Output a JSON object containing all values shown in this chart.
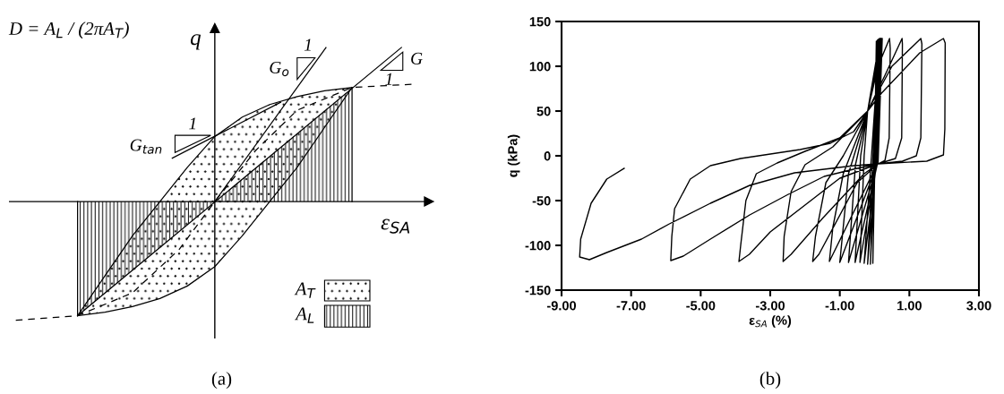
{
  "chart_data": [
    {
      "type": "other",
      "xlabel": "ε$_{SA}$",
      "ylabel": "q",
      "annotations": [
        "D = A$_{L}$ / (2πA$_{T}$)",
        "G$_{o}$",
        "1",
        "G",
        "1",
        "G$_{tan}$",
        "1",
        "A$_{T}$",
        "A$_{L}$",
        "(a)"
      ]
    },
    {
      "type": "line",
      "xlabel": "ε$_{SA}$ (%)",
      "ylabel": "q (kPa)",
      "grid": false,
      "xlim": [
        -9,
        3
      ],
      "ylim": [
        -150,
        150
      ],
      "xticks": [
        {
          "value": -9,
          "label": "-9.00"
        },
        {
          "value": -7,
          "label": "-7.00"
        },
        {
          "value": -5,
          "label": "-5.00"
        },
        {
          "value": -3,
          "label": "-3.00"
        },
        {
          "value": -1,
          "label": "-1.00"
        },
        {
          "value": 1,
          "label": "1.00"
        },
        {
          "value": 3,
          "label": "3.00"
        }
      ],
      "yticks": [
        -150,
        -100,
        -50,
        0,
        50,
        100,
        150
      ],
      "annotations": [
        "(b)"
      ],
      "series": [
        {
          "color": "#000000",
          "x": [
            0,
            0.05,
            0,
            -0.05,
            0.08,
            0.02,
            -0.12,
            0.1,
            0.03,
            -0.2,
            0.12,
            0.05,
            -0.3,
            0.14,
            0.05,
            -0.42,
            -0.3,
            -0.2,
            0.15,
            0.08,
            -0.56,
            -0.4,
            -0.2,
            0.17,
            0.08,
            -0.75,
            -0.55,
            -0.2,
            0.18,
            0.08,
            -1.0,
            -0.75,
            -0.2,
            0.2,
            0.08,
            -1.3,
            -1.2,
            -0.9,
            -0.2,
            0.22,
            0.1,
            -0.5,
            -1.6,
            -1.78,
            -1.7,
            -1.4,
            -0.9,
            -0.2,
            0.1,
            0.43,
            0.45,
            0.42,
            0.3,
            0.1,
            -0.3,
            -1.5,
            -2.4,
            -2.63,
            -2.6,
            -2.4,
            -2.0,
            -1.2,
            -0.2,
            0.3,
            0.79,
            0.8,
            0.78,
            0.6,
            0.1,
            -1,
            -2,
            -3,
            -3.6,
            -3.9,
            -3.85,
            -3.7,
            -3.4,
            -2.8,
            -2.0,
            -1.0,
            -0.2,
            0.5,
            1.33,
            1.36,
            1.33,
            1.2,
            0.8,
            0.1,
            -0.5,
            -1.45,
            -2.48,
            -3.59,
            -4.72,
            -5.5,
            -5.86,
            -5.83,
            -5.75,
            -5.3,
            -4.72,
            -3.85,
            -2.14,
            -1.27,
            -0.6,
            -0.2,
            0.2,
            1.3,
            1.98,
            2.03,
            2.02,
            1.98,
            1.5,
            0.1,
            -0.6,
            -2.3,
            -3.59,
            -4.72,
            -5.9,
            -6.7,
            -7.7,
            -8.2,
            -8.48,
            -8.45,
            -8.15,
            -7.7,
            -7.2
          ],
          "values": [
            0,
            128,
            -10,
            -120,
            129,
            -10,
            -121,
            130,
            -10,
            -121,
            130,
            -10,
            -120,
            131,
            -10,
            -119,
            0,
            50,
            131,
            -9,
            -119,
            0,
            50,
            131,
            -9,
            -119,
            -10,
            50,
            131,
            -9,
            -119,
            -20,
            50,
            131,
            -9,
            -118,
            -80,
            -20,
            50,
            131,
            -9,
            -30,
            -110,
            -118,
            -90,
            -30,
            0,
            50,
            100,
            131,
            120,
            20,
            -5,
            -9,
            -20,
            -70,
            -110,
            -118,
            -90,
            -40,
            -10,
            10,
            50,
            90,
            131,
            125,
            20,
            -3,
            -9,
            -25,
            -55,
            -85,
            -110,
            -118,
            -100,
            -50,
            -20,
            -8,
            5,
            20,
            50,
            100,
            131,
            125,
            20,
            0,
            -6,
            -9,
            -14,
            -23,
            -43,
            -66,
            -93,
            -112,
            -117,
            -90,
            -59,
            -26,
            -11,
            -3,
            7,
            14,
            27,
            50,
            70,
            115,
            131,
            126,
            30,
            1,
            -6,
            -9,
            -11,
            -19,
            -33,
            -53,
            -76,
            -93,
            -108,
            -116,
            -113,
            -93,
            -53,
            -26,
            -14
          ]
        }
      ]
    }
  ]
}
